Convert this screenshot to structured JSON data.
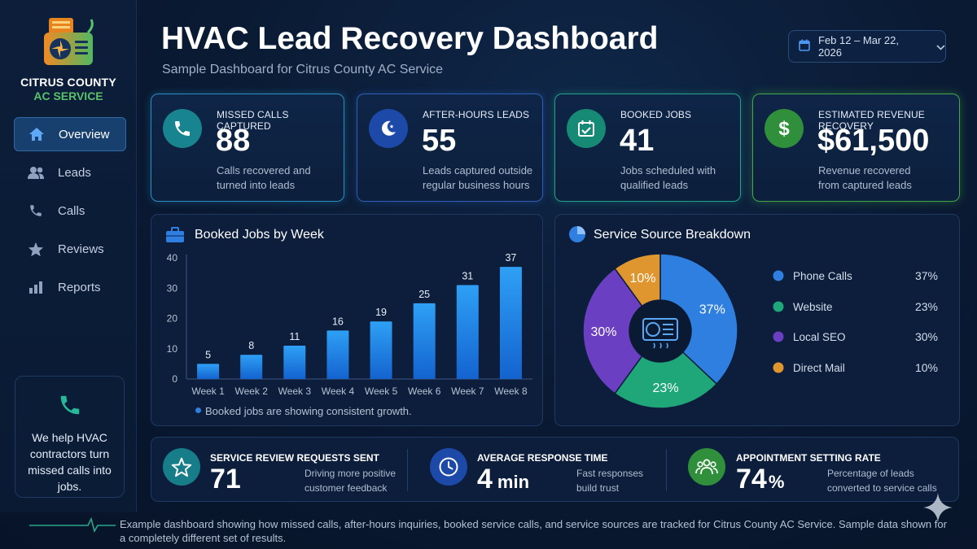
{
  "brand": {
    "line1": "CITRUS COUNTY",
    "line2": "AC SERVICE",
    "logo_icon": "ac-unit-logo-icon"
  },
  "sidebar": {
    "items": [
      {
        "label": "Overview",
        "icon": "home-icon",
        "active": true
      },
      {
        "label": "Leads",
        "icon": "users-icon",
        "active": false
      },
      {
        "label": "Calls",
        "icon": "phone-icon",
        "active": false
      },
      {
        "label": "Reviews",
        "icon": "star-icon",
        "active": false
      },
      {
        "label": "Reports",
        "icon": "bar-chart-icon",
        "active": false
      }
    ],
    "promo": {
      "icon": "phone-icon",
      "text": "We help HVAC contractors turn missed calls into jobs."
    }
  },
  "header": {
    "title": "HVAC Lead Recovery Dashboard",
    "subtitle": "Sample Dashboard for Citrus County AC Service",
    "date_range": "Feb 12 – Mar 22, 2026"
  },
  "kpis": [
    {
      "label": "MISSED CALLS CAPTURED",
      "value": "88",
      "desc": "Calls recovered and turned into leads",
      "icon": "phone-icon",
      "color": "#1fa3b0"
    },
    {
      "label": "AFTER-HOURS LEADS",
      "value": "55",
      "desc": "Leads captured outside regular business hours",
      "icon": "moon-icon",
      "color": "#2f66c8"
    },
    {
      "label": "BOOKED JOBS",
      "value": "41",
      "desc": "Jobs scheduled with qualified leads",
      "icon": "calendar-check-icon",
      "color": "#1f9e8a"
    },
    {
      "label": "ESTIMATED REVENUE RECOVERY",
      "value": "$61,500",
      "desc": "Revenue recovered from captured leads",
      "icon": "dollar-icon",
      "color": "#3aa14a"
    }
  ],
  "bar_panel": {
    "title": "Booked Jobs by Week",
    "note": "Booked jobs are showing consistent growth.",
    "icon": "briefcase-icon"
  },
  "pie_panel": {
    "title": "Service Source Breakdown",
    "icon": "pie-chart-icon",
    "center_icon": "ac-unit-icon"
  },
  "chart_data": [
    {
      "type": "bar",
      "title": "Booked Jobs by Week",
      "categories": [
        "Week 1",
        "Week 2",
        "Week 3",
        "Week 4",
        "Week 5",
        "Week 6",
        "Week 7",
        "Week 8"
      ],
      "values": [
        5,
        8,
        11,
        16,
        19,
        25,
        31,
        37
      ],
      "yticks": [
        0,
        10,
        20,
        30,
        40
      ],
      "ylim": [
        0,
        40
      ],
      "xlabel": "",
      "ylabel": "",
      "grid": false,
      "color": "#2b8ef0"
    },
    {
      "type": "pie",
      "title": "Service Source Breakdown",
      "labels": [
        "Phone Calls",
        "Website",
        "Local SEO",
        "Direct Mail"
      ],
      "values": [
        37,
        23,
        30,
        10
      ],
      "value_labels": [
        "37%",
        "23%",
        "30%",
        "10%"
      ],
      "colors": [
        "#2f7fe0",
        "#1fa77a",
        "#6a3fc2",
        "#e0962e"
      ],
      "legend": "right",
      "donut": true
    }
  ],
  "bottom_stats": [
    {
      "label": "SERVICE REVIEW REQUESTS SENT",
      "value": "71",
      "unit": "",
      "desc": "Driving more positive customer feedback",
      "icon": "star-icon",
      "color": "#1fa3b0"
    },
    {
      "label": "AVERAGE RESPONSE TIME",
      "value": "4",
      "unit": "min",
      "desc": "Fast responses build trust",
      "icon": "clock-icon",
      "color": "#2f66c8"
    },
    {
      "label": "APPOINTMENT SETTING RATE",
      "value": "74",
      "unit": "%",
      "desc": "Percentage of leads converted to service calls",
      "icon": "team-icon",
      "color": "#3aa14a"
    }
  ],
  "footer": {
    "text": "Example dashboard showing how missed calls, after-hours inquiries, booked service calls, and service sources are tracked for Citrus County AC Service. Sample data shown for a completely different set of results."
  }
}
